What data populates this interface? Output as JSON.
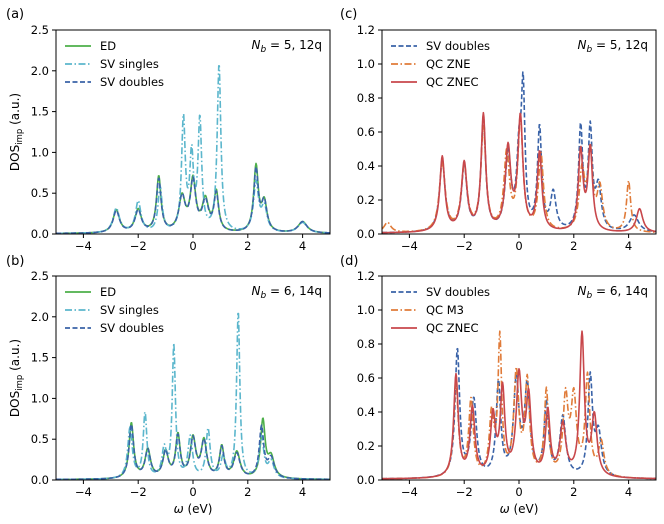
{
  "figure": {
    "xlabel": "ω (eV)",
    "ylabel_main": "DOS",
    "ylabel_sub": "imp",
    "ylabel_unit": " (a.u.)"
  },
  "colors": {
    "ED": "#4daf4a",
    "SV singles": "#5bb6cc",
    "SV doubles": "#3a63a8",
    "QC ZNE": "#e07b39",
    "QC M3": "#e07b39",
    "QC ZNEC": "#c8474b"
  },
  "chart_data": [
    {
      "panel": "(a)",
      "type": "line",
      "annotation": "N_b = 5, 12q",
      "xlim": [
        -5,
        5
      ],
      "ylim": [
        0,
        2.5
      ],
      "xticks": [
        -4,
        -2,
        0,
        2,
        4
      ],
      "yticks": [
        0.0,
        0.5,
        1.0,
        1.5,
        2.0,
        2.5
      ],
      "series": [
        {
          "name": "ED",
          "style": "solid",
          "peaks": [
            [
              -2.8,
              0.28,
              0.14
            ],
            [
              -2.0,
              0.28,
              0.14
            ],
            [
              -1.25,
              0.68,
              0.1
            ],
            [
              -0.4,
              0.42,
              0.14
            ],
            [
              0.0,
              0.62,
              0.12
            ],
            [
              0.45,
              0.38,
              0.14
            ],
            [
              0.85,
              0.48,
              0.1
            ],
            [
              2.3,
              0.8,
              0.1
            ],
            [
              2.6,
              0.36,
              0.12
            ],
            [
              4.0,
              0.14,
              0.2
            ]
          ]
        },
        {
          "name": "SV singles",
          "style": "dashdot",
          "peaks": [
            [
              -2.8,
              0.3,
              0.14
            ],
            [
              -2.0,
              0.38,
              0.12
            ],
            [
              -1.2,
              0.55,
              0.09
            ],
            [
              -0.35,
              1.38,
              0.08
            ],
            [
              -0.05,
              0.9,
              0.08
            ],
            [
              0.25,
              1.35,
              0.08
            ],
            [
              0.95,
              2.05,
              0.08
            ],
            [
              2.3,
              0.6,
              0.11
            ],
            [
              2.6,
              0.3,
              0.12
            ],
            [
              4.0,
              0.13,
              0.2
            ]
          ]
        },
        {
          "name": "SV doubles",
          "style": "dashed",
          "peaks": [
            [
              -2.8,
              0.27,
              0.14
            ],
            [
              -2.0,
              0.27,
              0.14
            ],
            [
              -1.25,
              0.65,
              0.1
            ],
            [
              -0.4,
              0.42,
              0.14
            ],
            [
              0.0,
              0.6,
              0.12
            ],
            [
              0.45,
              0.36,
              0.14
            ],
            [
              0.85,
              0.46,
              0.1
            ],
            [
              2.3,
              0.76,
              0.1
            ],
            [
              2.6,
              0.36,
              0.12
            ],
            [
              4.0,
              0.14,
              0.2
            ]
          ]
        }
      ]
    },
    {
      "panel": "(b)",
      "type": "line",
      "annotation": "N_b = 6, 14q",
      "xlim": [
        -5,
        5
      ],
      "ylim": [
        0,
        2.5
      ],
      "xticks": [
        -4,
        -2,
        0,
        2,
        4
      ],
      "yticks": [
        0.0,
        0.5,
        1.0,
        1.5,
        2.0,
        2.5
      ],
      "series": [
        {
          "name": "ED",
          "style": "solid",
          "peaks": [
            [
              -2.25,
              0.68,
              0.1
            ],
            [
              -1.65,
              0.35,
              0.12
            ],
            [
              -1.0,
              0.32,
              0.12
            ],
            [
              -0.55,
              0.52,
              0.1
            ],
            [
              0.0,
              0.48,
              0.12
            ],
            [
              0.4,
              0.45,
              0.12
            ],
            [
              1.05,
              0.38,
              0.1
            ],
            [
              1.6,
              0.32,
              0.14
            ],
            [
              2.55,
              0.7,
              0.1
            ],
            [
              2.85,
              0.25,
              0.14
            ]
          ]
        },
        {
          "name": "SV singles",
          "style": "dashdot",
          "peaks": [
            [
              -2.3,
              0.62,
              0.1
            ],
            [
              -1.75,
              0.8,
              0.08
            ],
            [
              -1.05,
              0.35,
              0.1
            ],
            [
              -0.7,
              1.62,
              0.07
            ],
            [
              -0.1,
              0.5,
              0.1
            ],
            [
              0.55,
              0.6,
              0.09
            ],
            [
              1.1,
              0.25,
              0.1
            ],
            [
              1.65,
              2.05,
              0.07
            ],
            [
              2.5,
              0.5,
              0.1
            ],
            [
              2.85,
              0.2,
              0.13
            ]
          ]
        },
        {
          "name": "SV doubles",
          "style": "dashed",
          "peaks": [
            [
              -2.25,
              0.66,
              0.1
            ],
            [
              -1.65,
              0.34,
              0.12
            ],
            [
              -1.0,
              0.32,
              0.12
            ],
            [
              -0.55,
              0.5,
              0.1
            ],
            [
              0.0,
              0.47,
              0.12
            ],
            [
              0.4,
              0.44,
              0.12
            ],
            [
              1.05,
              0.37,
              0.1
            ],
            [
              1.6,
              0.3,
              0.14
            ],
            [
              2.5,
              0.62,
              0.1
            ],
            [
              2.85,
              0.24,
              0.14
            ]
          ]
        }
      ]
    },
    {
      "panel": "(c)",
      "type": "line",
      "annotation": "N_b = 5, 12q",
      "xlim": [
        -5,
        5
      ],
      "ylim": [
        0,
        1.2
      ],
      "xticks": [
        -4,
        -2,
        0,
        2,
        4
      ],
      "yticks": [
        0.0,
        0.2,
        0.4,
        0.6,
        0.8,
        1.0,
        1.2
      ],
      "series": [
        {
          "name": "SV doubles",
          "style": "dashed",
          "peaks": [
            [
              -2.8,
              0.42,
              0.12
            ],
            [
              -2.0,
              0.38,
              0.12
            ],
            [
              -1.3,
              0.66,
              0.1
            ],
            [
              -0.4,
              0.45,
              0.12
            ],
            [
              0.0,
              0.4,
              0.1
            ],
            [
              0.15,
              0.78,
              0.08
            ],
            [
              0.75,
              0.6,
              0.09
            ],
            [
              1.25,
              0.22,
              0.12
            ],
            [
              2.25,
              0.6,
              0.09
            ],
            [
              2.6,
              0.58,
              0.09
            ],
            [
              2.9,
              0.25,
              0.12
            ],
            [
              4.2,
              0.1,
              0.2
            ]
          ]
        },
        {
          "name": "QC ZNE",
          "style": "dashdot",
          "peaks": [
            [
              -4.8,
              0.06,
              0.15
            ],
            [
              -2.8,
              0.4,
              0.13
            ],
            [
              -2.0,
              0.38,
              0.13
            ],
            [
              -1.3,
              0.6,
              0.11
            ],
            [
              -0.45,
              0.45,
              0.12
            ],
            [
              0.05,
              0.65,
              0.11
            ],
            [
              0.8,
              0.45,
              0.11
            ],
            [
              2.3,
              0.35,
              0.12
            ],
            [
              2.6,
              0.45,
              0.1
            ],
            [
              2.95,
              0.25,
              0.12
            ],
            [
              4.0,
              0.3,
              0.09
            ]
          ]
        },
        {
          "name": "QC ZNEC",
          "style": "solid",
          "peaks": [
            [
              -2.8,
              0.44,
              0.11
            ],
            [
              -2.0,
              0.4,
              0.12
            ],
            [
              -1.3,
              0.68,
              0.1
            ],
            [
              -0.4,
              0.48,
              0.12
            ],
            [
              0.05,
              0.66,
              0.11
            ],
            [
              0.75,
              0.46,
              0.1
            ],
            [
              2.25,
              0.47,
              0.1
            ],
            [
              2.6,
              0.48,
              0.1
            ],
            [
              4.4,
              0.14,
              0.14
            ]
          ]
        }
      ]
    },
    {
      "panel": "(d)",
      "type": "line",
      "annotation": "N_b = 6, 14q",
      "xlim": [
        -5,
        5
      ],
      "ylim": [
        0,
        1.2
      ],
      "xticks": [
        -4,
        -2,
        0,
        2,
        4
      ],
      "yticks": [
        0.0,
        0.2,
        0.4,
        0.6,
        0.8,
        1.0,
        1.2
      ],
      "series": [
        {
          "name": "SV doubles",
          "style": "dashed",
          "peaks": [
            [
              -2.25,
              0.75,
              0.1
            ],
            [
              -1.65,
              0.45,
              0.12
            ],
            [
              -0.75,
              0.55,
              0.1
            ],
            [
              -0.1,
              0.55,
              0.12
            ],
            [
              0.3,
              0.52,
              0.12
            ],
            [
              1.0,
              0.42,
              0.1
            ],
            [
              1.6,
              0.35,
              0.13
            ],
            [
              2.6,
              0.58,
              0.1
            ],
            [
              2.9,
              0.25,
              0.13
            ]
          ]
        },
        {
          "name": "QC M3",
          "style": "dashdot",
          "peaks": [
            [
              -2.3,
              0.55,
              0.1
            ],
            [
              -1.75,
              0.45,
              0.1
            ],
            [
              -1.0,
              0.35,
              0.1
            ],
            [
              -0.7,
              0.8,
              0.08
            ],
            [
              -0.1,
              0.6,
              0.11
            ],
            [
              0.3,
              0.55,
              0.1
            ],
            [
              1.0,
              0.5,
              0.09
            ],
            [
              1.7,
              0.45,
              0.11
            ],
            [
              2.0,
              0.45,
              0.12
            ],
            [
              2.5,
              0.58,
              0.1
            ],
            [
              3.0,
              0.2,
              0.12
            ]
          ]
        },
        {
          "name": "QC ZNEC",
          "style": "solid",
          "peaks": [
            [
              -2.3,
              0.6,
              0.1
            ],
            [
              -1.7,
              0.4,
              0.11
            ],
            [
              -0.95,
              0.35,
              0.11
            ],
            [
              -0.6,
              0.5,
              0.1
            ],
            [
              0.0,
              0.58,
              0.12
            ],
            [
              0.35,
              0.45,
              0.11
            ],
            [
              1.05,
              0.38,
              0.1
            ],
            [
              1.6,
              0.3,
              0.13
            ],
            [
              2.3,
              0.83,
              0.1
            ],
            [
              2.75,
              0.35,
              0.12
            ]
          ]
        }
      ]
    }
  ]
}
